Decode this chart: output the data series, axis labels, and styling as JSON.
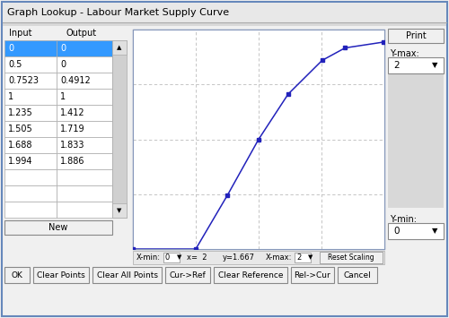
{
  "title": "Graph Lookup - Labour Market Supply Curve",
  "table_data": [
    [
      "0",
      "0"
    ],
    [
      "0.5",
      "0"
    ],
    [
      "0.7523",
      "0.4912"
    ],
    [
      "1",
      "1"
    ],
    [
      "1.235",
      "1.412"
    ],
    [
      "1.505",
      "1.719"
    ],
    [
      "1.688",
      "1.833"
    ],
    [
      "1.994",
      "1.886"
    ]
  ],
  "col_headers": [
    "Input",
    "Output"
  ],
  "curve_x": [
    0,
    0.5,
    0.7523,
    1,
    1.235,
    1.505,
    1.688,
    1.994
  ],
  "curve_y": [
    0,
    0,
    0.4912,
    1,
    1.412,
    1.719,
    1.833,
    1.886
  ],
  "xmin": 0,
  "xmax": 2,
  "ymin": 0,
  "ymax": 2,
  "dialog_bg": "#f0f0f0",
  "plot_bg": "#ffffff",
  "curve_color": "#2222bb",
  "grid_color": "#bbbbbb",
  "highlight_color": "#3399ff",
  "button_labels": [
    "OK",
    "Clear Points",
    "Clear All Points",
    "Cur->Ref",
    "Clear Reference",
    "Rel->Cur",
    "Cancel"
  ]
}
